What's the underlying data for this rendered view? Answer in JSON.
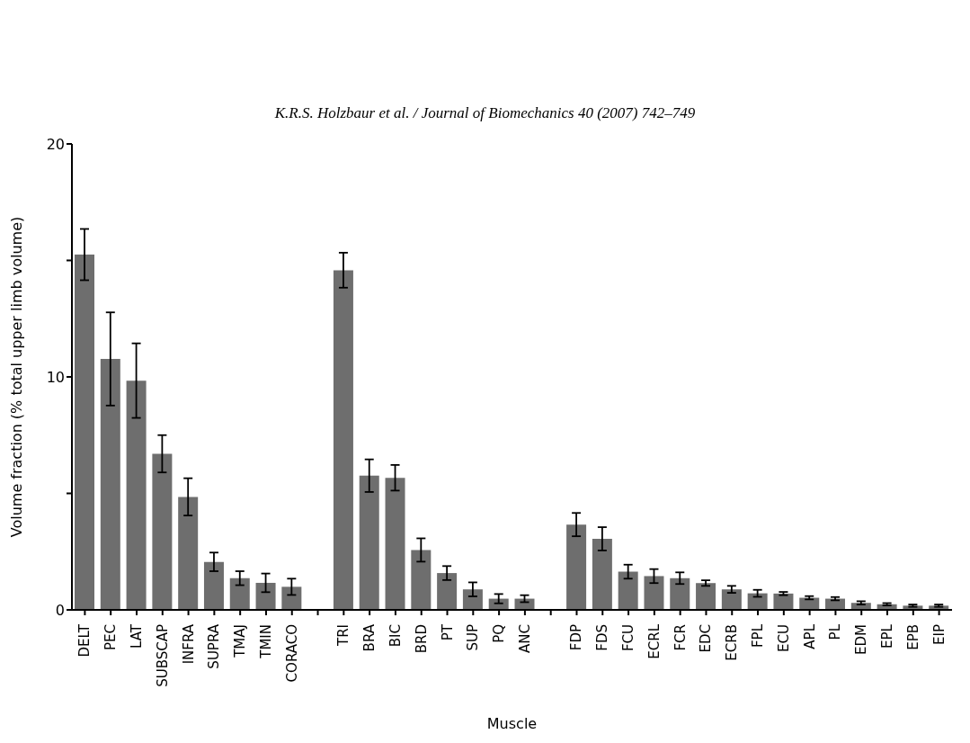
{
  "chart_data": {
    "type": "bar",
    "annotations": [
      "K.R.S. Holzbaur et al. / Journal of Biomechanics 40 (2007) 742–749"
    ],
    "xlabel": "Muscle",
    "ylabel": "Volume fraction (% total upper limb volume)",
    "categories": [
      "DELT",
      "PEC",
      "LAT",
      "SUBSCAP",
      "INFRA",
      "SUPRA",
      "TMAJ",
      "TMIN",
      "CORACO",
      null,
      "TRI",
      "BRA",
      "BIC",
      "BRD",
      "PT",
      "SUP",
      "PQ",
      "ANC",
      null,
      "FDP",
      "FDS",
      "FCU",
      "ECRL",
      "FCR",
      "EDC",
      "ECRB",
      "FPL",
      "ECU",
      "APL",
      "PL",
      "EDM",
      "EPL",
      "EPB",
      "EIP"
    ],
    "values": [
      15.25,
      10.77,
      9.84,
      6.7,
      4.85,
      2.06,
      1.36,
      1.16,
      0.99,
      null,
      14.58,
      5.76,
      5.67,
      2.57,
      1.58,
      0.88,
      0.48,
      0.48,
      null,
      3.66,
      3.05,
      1.64,
      1.45,
      1.36,
      1.15,
      0.88,
      0.71,
      0.7,
      0.52,
      0.48,
      0.3,
      0.24,
      0.18,
      0.18
    ],
    "errors": [
      1.1,
      2.0,
      1.6,
      0.8,
      0.8,
      0.4,
      0.3,
      0.4,
      0.35,
      null,
      0.75,
      0.7,
      0.55,
      0.5,
      0.3,
      0.3,
      0.2,
      0.15,
      null,
      0.5,
      0.5,
      0.3,
      0.3,
      0.25,
      0.12,
      0.15,
      0.15,
      0.07,
      0.07,
      0.07,
      0.07,
      0.05,
      0.05,
      0.05
    ],
    "color": "#6e6e6e",
    "ylim": [
      0,
      20
    ],
    "yticks": [
      0,
      {
        "value": 5,
        "label": null
      },
      10,
      {
        "value": 15,
        "label": null
      },
      20
    ],
    "grid": false
  }
}
